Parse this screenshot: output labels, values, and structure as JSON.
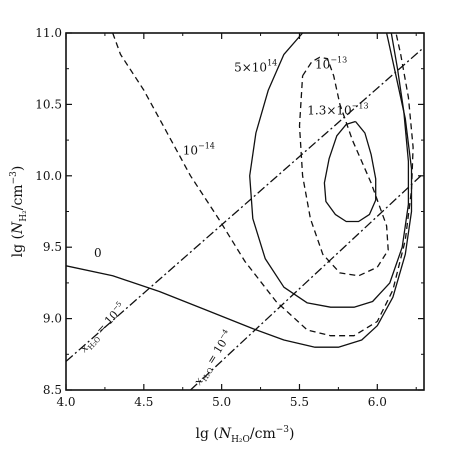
{
  "chart_data": {
    "type": "line",
    "xlabel": {
      "prefix": "lg",
      "var": "N",
      "sub": "H₂O",
      "unit": "/cm",
      "exp": "−3"
    },
    "ylabel": {
      "prefix": "lg",
      "var": "N",
      "sub": "H₂",
      "unit": "/cm",
      "exp": "−3"
    },
    "xlim": [
      4.0,
      6.3
    ],
    "ylim": [
      8.5,
      11.0
    ],
    "xticks": [
      4.0,
      4.5,
      5.0,
      5.5,
      6.0
    ],
    "yticks": [
      8.5,
      9.0,
      9.5,
      10.0,
      10.5,
      11.0
    ],
    "xtick_labels": [
      "4.0",
      "4.5",
      "5.0",
      "5.5",
      "6.0"
    ],
    "ytick_labels": [
      "8.5",
      "9.0",
      "9.5",
      "10.0",
      "10.5",
      "11.0"
    ],
    "grid": false,
    "series": [
      {
        "label": "0",
        "style": "solid",
        "points": [
          [
            4.0,
            9.37
          ],
          [
            4.3,
            9.3
          ],
          [
            4.6,
            9.19
          ],
          [
            4.9,
            9.06
          ],
          [
            5.2,
            8.93
          ],
          [
            5.4,
            8.85
          ],
          [
            5.6,
            8.8
          ],
          [
            5.75,
            8.8
          ],
          [
            5.9,
            8.85
          ],
          [
            6.0,
            8.95
          ],
          [
            6.1,
            9.15
          ],
          [
            6.18,
            9.45
          ],
          [
            6.22,
            9.75
          ],
          [
            6.22,
            10.05
          ],
          [
            6.18,
            10.4
          ],
          [
            6.12,
            10.7
          ],
          [
            6.07,
            10.95
          ],
          [
            6.06,
            11.0
          ]
        ]
      },
      {
        "label": "5×10",
        "label_exp": "14",
        "style": "solid",
        "points": [
          [
            5.52,
            11.0
          ],
          [
            5.4,
            10.85
          ],
          [
            5.3,
            10.6
          ],
          [
            5.22,
            10.3
          ],
          [
            5.18,
            10.0
          ],
          [
            5.2,
            9.7
          ],
          [
            5.28,
            9.42
          ],
          [
            5.4,
            9.22
          ],
          [
            5.55,
            9.11
          ],
          [
            5.7,
            9.08
          ],
          [
            5.85,
            9.08
          ],
          [
            5.97,
            9.12
          ],
          [
            6.08,
            9.25
          ],
          [
            6.16,
            9.5
          ],
          [
            6.2,
            9.8
          ],
          [
            6.2,
            10.1
          ],
          [
            6.17,
            10.45
          ],
          [
            6.13,
            10.75
          ],
          [
            6.09,
            11.0
          ]
        ]
      },
      {
        "label": "",
        "style": "solid",
        "points": [
          [
            5.86,
            10.38
          ],
          [
            5.8,
            10.36
          ],
          [
            5.74,
            10.28
          ],
          [
            5.69,
            10.12
          ],
          [
            5.66,
            9.95
          ],
          [
            5.67,
            9.82
          ],
          [
            5.73,
            9.73
          ],
          [
            5.8,
            9.68
          ],
          [
            5.88,
            9.68
          ],
          [
            5.95,
            9.73
          ],
          [
            5.99,
            9.83
          ],
          [
            5.99,
            9.98
          ],
          [
            5.96,
            10.15
          ],
          [
            5.92,
            10.3
          ],
          [
            5.86,
            10.38
          ]
        ]
      },
      {
        "label": "10",
        "label_exp": "−14",
        "style": "dashed",
        "points": [
          [
            4.3,
            11.0
          ],
          [
            4.35,
            10.85
          ],
          [
            4.5,
            10.6
          ],
          [
            4.65,
            10.3
          ],
          [
            4.8,
            10.0
          ],
          [
            4.98,
            9.7
          ],
          [
            5.15,
            9.4
          ],
          [
            5.35,
            9.12
          ],
          [
            5.55,
            8.92
          ],
          [
            5.7,
            8.88
          ],
          [
            5.85,
            8.88
          ],
          [
            6.0,
            8.98
          ],
          [
            6.1,
            9.2
          ],
          [
            6.18,
            9.55
          ],
          [
            6.22,
            9.9
          ],
          [
            6.23,
            10.2
          ],
          [
            6.2,
            10.55
          ],
          [
            6.15,
            10.85
          ],
          [
            6.12,
            11.0
          ]
        ]
      },
      {
        "label": "10",
        "label_exp": "−13",
        "style": "dashed",
        "points": [
          [
            5.52,
            10.7
          ],
          [
            5.58,
            10.8
          ],
          [
            5.63,
            10.83
          ],
          [
            5.68,
            10.82
          ],
          [
            5.72,
            10.7
          ],
          [
            5.76,
            10.5
          ],
          [
            5.84,
            10.25
          ],
          [
            5.96,
            9.95
          ],
          [
            6.06,
            9.65
          ],
          [
            6.07,
            9.48
          ],
          [
            6.0,
            9.36
          ],
          [
            5.88,
            9.3
          ],
          [
            5.76,
            9.32
          ],
          [
            5.65,
            9.45
          ],
          [
            5.57,
            9.7
          ],
          [
            5.52,
            10.0
          ],
          [
            5.5,
            10.35
          ],
          [
            5.52,
            10.7
          ]
        ]
      },
      {
        "label": "",
        "style": "dashdot",
        "points": [
          [
            4.0,
            8.7
          ],
          [
            6.3,
            10.9
          ]
        ]
      },
      {
        "label": "",
        "style": "dashdot",
        "points": [
          [
            4.8,
            8.5
          ],
          [
            6.3,
            10.02
          ]
        ]
      }
    ],
    "annotations": [
      {
        "text": "0",
        "x": 4.18,
        "y": 9.43
      },
      {
        "text": "5×10",
        "exp": "14",
        "x": 5.08,
        "y": 10.73
      },
      {
        "text": "10",
        "exp": "−13",
        "x": 5.6,
        "y": 10.75
      },
      {
        "text": "1.3×10",
        "exp": "−13",
        "x": 5.55,
        "y": 10.43
      },
      {
        "text": "10",
        "exp": "−14",
        "x": 4.75,
        "y": 10.15
      }
    ],
    "diagonal_labels": [
      {
        "var": "x",
        "sub": "H₂O",
        "text": " = 10",
        "exp": "−5",
        "x": 4.12,
        "y": 8.76,
        "angle": -48
      },
      {
        "var": "x",
        "sub": "H₂O",
        "text": " = 10",
        "exp": "−4",
        "x": 4.86,
        "y": 8.53,
        "angle": -58
      }
    ]
  }
}
